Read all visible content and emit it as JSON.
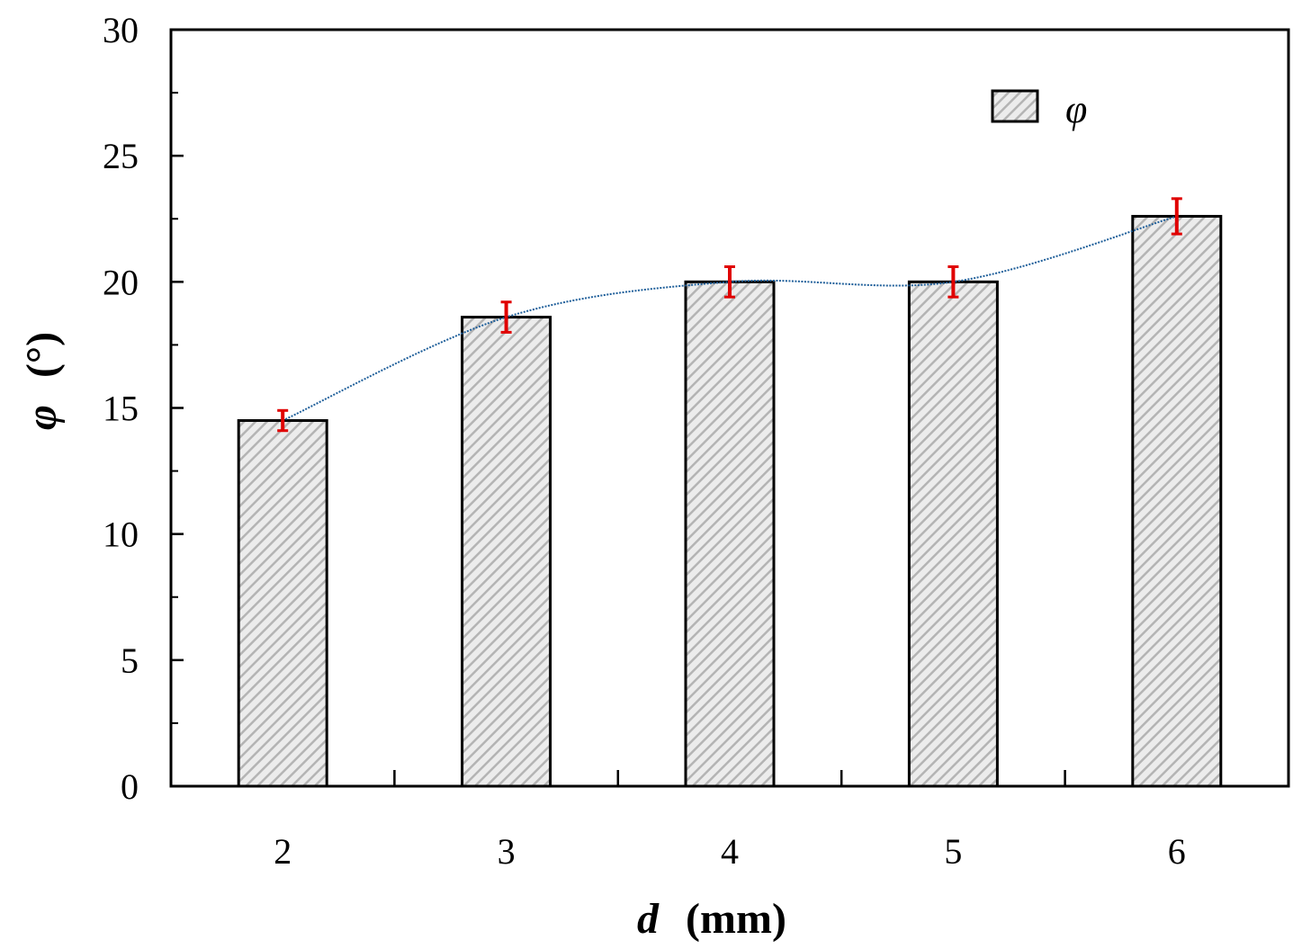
{
  "chart_data": {
    "type": "bar",
    "categories": [
      "2",
      "3",
      "4",
      "5",
      "6"
    ],
    "series": [
      {
        "name": "φ",
        "values": [
          14.5,
          18.6,
          20.0,
          20.0,
          22.6
        ],
        "errors": [
          0.4,
          0.6,
          0.6,
          0.6,
          0.7
        ]
      }
    ],
    "trend_line": true,
    "xlabel_var": "d",
    "xlabel_unit": "(mm)",
    "ylabel_var": "φ",
    "ylabel_unit": "(°)",
    "ylim": [
      0,
      30
    ],
    "yticks": [
      "0",
      "5",
      "10",
      "15",
      "20",
      "25",
      "30"
    ],
    "grid": false,
    "legend_position": "top-right",
    "colors": {
      "bar_fill": "#c8c8c8",
      "bar_stroke": "#000000",
      "error_bar": "#e00000",
      "trend_line": "#1f5f9a"
    }
  }
}
